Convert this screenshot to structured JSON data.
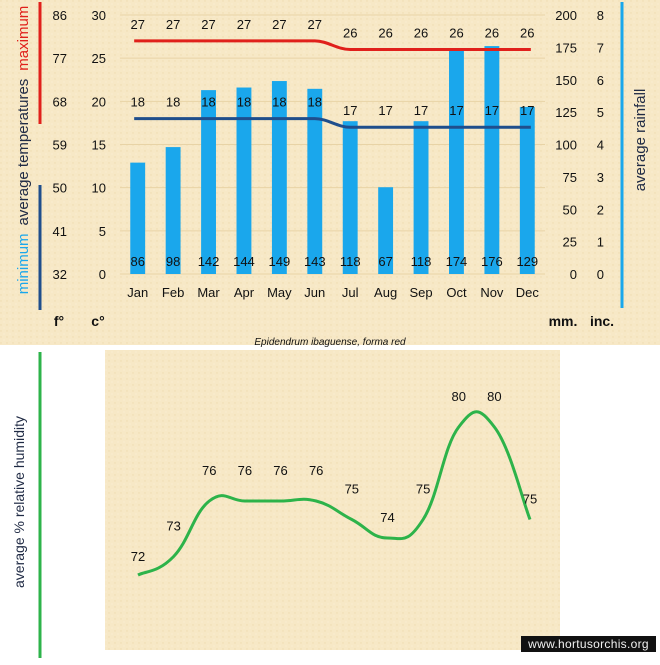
{
  "chart_data": [
    {
      "type": "bar+line",
      "title": "Epidendrum ibaguense, forma red",
      "categories": [
        "Jan",
        "Feb",
        "Mar",
        "Apr",
        "May",
        "Jun",
        "Jul",
        "Aug",
        "Sep",
        "Oct",
        "Nov",
        "Dec"
      ],
      "rainfall_mm": [
        86,
        98,
        142,
        144,
        149,
        143,
        118,
        67,
        118,
        174,
        176,
        129
      ],
      "max_temp_c": [
        27,
        27,
        27,
        27,
        27,
        27,
        26,
        26,
        26,
        26,
        26,
        26
      ],
      "min_temp_c": [
        18,
        18,
        18,
        18,
        18,
        18,
        17,
        17,
        17,
        17,
        17,
        17
      ],
      "axes": {
        "fahrenheit_ticks": [
          "86",
          "77",
          "68",
          "59",
          "50",
          "41",
          "32"
        ],
        "celsius_ticks": [
          "30",
          "25",
          "20",
          "15",
          "10",
          "5",
          "0"
        ],
        "celsius_range": [
          0,
          30
        ],
        "mm_ticks": [
          "200",
          "175",
          "150",
          "125",
          "100",
          "75",
          "50",
          "25",
          "0"
        ],
        "mm_range": [
          0,
          200
        ],
        "inch_ticks": [
          "8",
          "7",
          "6",
          "5",
          "4",
          "3",
          "2",
          "1",
          "0"
        ]
      },
      "unit_labels": {
        "f": "f°",
        "c": "c°",
        "mm": "mm.",
        "inch": "inc."
      },
      "ylabel_left": {
        "minimum": "minimum",
        "average_temperatures": "average  temperatures",
        "maximum": "maximum"
      },
      "ylabel_right": "average rainfall",
      "colors": {
        "rain": "#1aa7ec",
        "max": "#e0201b",
        "min": "#1f4e8c",
        "rain_axis": "#1aa7ec"
      }
    },
    {
      "type": "line",
      "categories": [
        "Jan",
        "Feb",
        "Mar",
        "Apr",
        "May",
        "Jun",
        "Jul",
        "Aug",
        "Sep",
        "Oct",
        "Nov",
        "Dec"
      ],
      "humidity_pct": [
        72,
        73,
        76,
        76,
        76,
        76,
        75,
        74,
        75,
        80,
        80,
        75
      ],
      "ylabel": "average %  relative humidity",
      "colors": {
        "line": "#2db34a",
        "axis": "#2db34a"
      }
    }
  ],
  "watermark": "www.hortusorchis.org"
}
